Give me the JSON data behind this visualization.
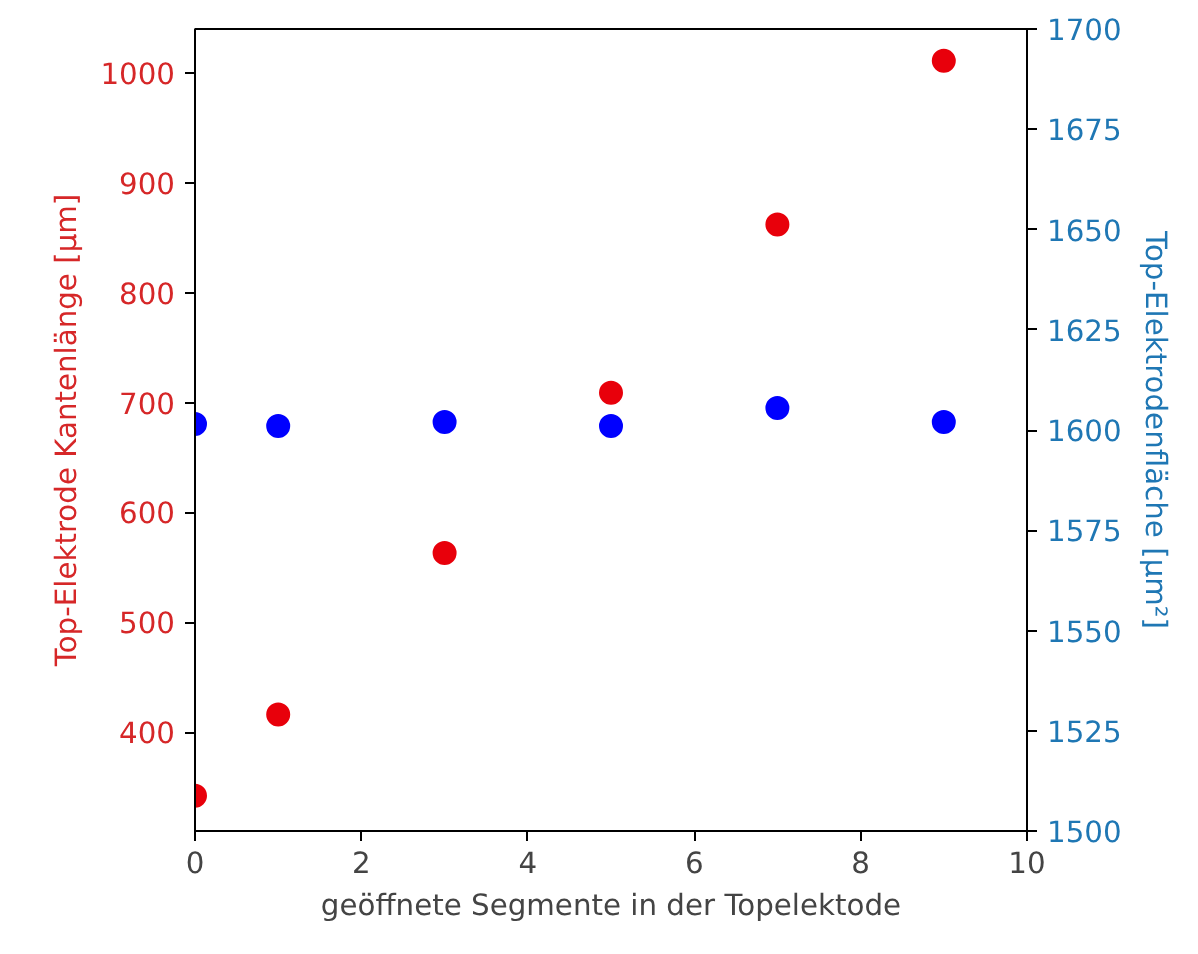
{
  "chart_data": {
    "type": "scatter",
    "xlabel": "geöffnete Segmente in der Topelektode",
    "ylabel": "Top-Elektrode Kantenlänge [µm]",
    "y2label": "Top-Elektrodenfläche [µm²]",
    "x": [
      0,
      1,
      3,
      5,
      7,
      9
    ],
    "series": [
      {
        "color": "#e8000b",
        "values": [
          342,
          416,
          563,
          709,
          862,
          1011
        ]
      },
      {
        "color": "#0000ff",
        "axis": "y2",
        "values": [
          1601.5,
          1601,
          1602,
          1601,
          1605.5,
          1602
        ]
      }
    ],
    "xlim": [
      0,
      10
    ],
    "xticks": [
      0,
      2,
      4,
      6,
      8,
      10
    ],
    "ylim": [
      310,
      1040
    ],
    "yticks": [
      400,
      500,
      600,
      700,
      800,
      900,
      1000
    ],
    "y2lim": [
      1500,
      1700
    ],
    "y2ticks": [
      1500,
      1525,
      1550,
      1575,
      1600,
      1625,
      1650,
      1675,
      1700
    ],
    "grid": false,
    "marker": "circle"
  }
}
